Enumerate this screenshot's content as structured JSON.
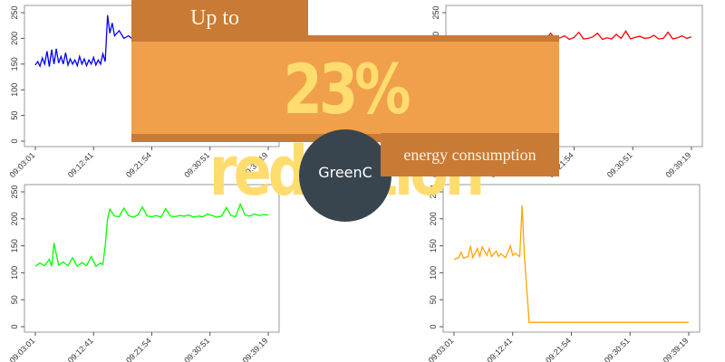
{
  "banner": {
    "top_text": "Up to",
    "main_text": "23% reduction",
    "sub_text": "energy consumption"
  },
  "badge": {
    "label": "GreenC"
  },
  "colors": {
    "banner_dark": "#c97a35",
    "banner_light": "#f0a04a",
    "headline": "#ffdc6e",
    "badge": "#38454f"
  },
  "chart_data": [
    {
      "type": "line",
      "color": "#0000ff",
      "x_ticks": [
        "09:03:01",
        "09:12:41",
        "09:21:54",
        "09:30:51",
        "09:39:19"
      ],
      "y_ticks": [
        0,
        50,
        100,
        150,
        200,
        250
      ],
      "ylim": [
        0,
        250
      ],
      "series": [
        {
          "x": [
            0,
            0.01,
            0.02,
            0.03,
            0.04,
            0.05,
            0.06,
            0.07,
            0.08,
            0.09,
            0.1,
            0.11,
            0.12,
            0.13,
            0.14,
            0.15,
            0.16,
            0.17,
            0.18,
            0.19,
            0.2,
            0.21,
            0.22,
            0.23,
            0.24,
            0.25,
            0.26,
            0.27,
            0.28,
            0.29,
            0.3,
            0.31,
            0.32,
            0.33,
            0.34,
            0.36,
            0.38,
            0.4,
            0.42
          ],
          "y": [
            148,
            155,
            146,
            162,
            150,
            175,
            145,
            178,
            150,
            180,
            152,
            165,
            150,
            172,
            148,
            160,
            150,
            158,
            147,
            165,
            150,
            160,
            147,
            158,
            150,
            163,
            148,
            158,
            150,
            170,
            155,
            245,
            210,
            230,
            205,
            215,
            200,
            205,
            198
          ]
        }
      ]
    },
    {
      "type": "line",
      "color": "#ff0000",
      "x_ticks": [
        "09:03:01",
        "09:12:41",
        "09:21:54",
        "09:30:51",
        "09:39:19"
      ],
      "y_ticks": [
        200,
        250
      ],
      "ylim": [
        0,
        250
      ],
      "series": [
        {
          "x": [
            0.36,
            0.38,
            0.4,
            0.42,
            0.44,
            0.46,
            0.48,
            0.5,
            0.52,
            0.54,
            0.56,
            0.58,
            0.6,
            0.62,
            0.64,
            0.66,
            0.68,
            0.7,
            0.72,
            0.74,
            0.76,
            0.78,
            0.8,
            0.82,
            0.84,
            0.86,
            0.88,
            0.9,
            0.92,
            0.94,
            0.96,
            0.98,
            1.0
          ],
          "y": [
            200,
            198,
            210,
            199,
            201,
            205,
            198,
            202,
            212,
            199,
            200,
            203,
            210,
            198,
            201,
            199,
            208,
            200,
            214,
            199,
            202,
            204,
            200,
            201,
            206,
            199,
            200,
            212,
            199,
            201,
            205,
            200,
            203
          ]
        }
      ]
    },
    {
      "type": "line",
      "color": "#00ff00",
      "x_ticks": [
        "09:03:01",
        "09:12:41",
        "09:21:54",
        "09:30:51",
        "09:39:19"
      ],
      "y_ticks": [
        0,
        50,
        100,
        150,
        200,
        250
      ],
      "ylim": [
        0,
        250
      ],
      "series": [
        {
          "x": [
            0,
            0.02,
            0.04,
            0.06,
            0.07,
            0.08,
            0.1,
            0.12,
            0.14,
            0.16,
            0.18,
            0.2,
            0.22,
            0.24,
            0.26,
            0.28,
            0.29,
            0.3,
            0.31,
            0.32,
            0.34,
            0.36,
            0.38,
            0.4,
            0.42,
            0.44,
            0.46,
            0.48,
            0.5,
            0.52,
            0.54,
            0.56,
            0.58,
            0.6,
            0.62,
            0.64,
            0.66,
            0.68,
            0.7,
            0.72,
            0.74,
            0.76,
            0.78,
            0.8,
            0.82,
            0.84,
            0.86,
            0.88,
            0.9,
            0.92,
            0.94,
            0.96,
            0.98,
            1.0
          ],
          "y": [
            112,
            118,
            113,
            125,
            112,
            155,
            114,
            120,
            113,
            128,
            112,
            119,
            113,
            130,
            112,
            118,
            115,
            150,
            200,
            218,
            205,
            204,
            220,
            206,
            203,
            207,
            222,
            205,
            204,
            206,
            203,
            219,
            205,
            204,
            206,
            205,
            207,
            203,
            205,
            204,
            209,
            206,
            203,
            205,
            221,
            206,
            204,
            227,
            207,
            205,
            209,
            206,
            208,
            207
          ]
        }
      ]
    },
    {
      "type": "line",
      "color": "#ffa500",
      "x_ticks": [
        "09:03:01",
        "09:12:41",
        "09:21:54",
        "09:30:51",
        "09:39:19"
      ],
      "y_ticks": [
        0,
        50,
        100,
        150,
        200,
        250
      ],
      "ylim": [
        0,
        250
      ],
      "series": [
        {
          "x": [
            0,
            0.02,
            0.03,
            0.04,
            0.06,
            0.07,
            0.08,
            0.1,
            0.11,
            0.12,
            0.14,
            0.15,
            0.16,
            0.18,
            0.19,
            0.2,
            0.22,
            0.24,
            0.25,
            0.26,
            0.28,
            0.29,
            0.3,
            0.32,
            0.33,
            0.34,
            0.35,
            0.36,
            0.4,
            0.5,
            0.6,
            0.7,
            0.8,
            0.9,
            1.0
          ],
          "y": [
            125,
            128,
            138,
            127,
            130,
            150,
            128,
            145,
            130,
            148,
            132,
            145,
            130,
            140,
            130,
            135,
            128,
            150,
            132,
            136,
            130,
            225,
            130,
            8,
            8,
            8,
            8,
            8,
            8,
            8,
            8,
            8,
            8,
            8,
            8
          ]
        }
      ]
    }
  ]
}
